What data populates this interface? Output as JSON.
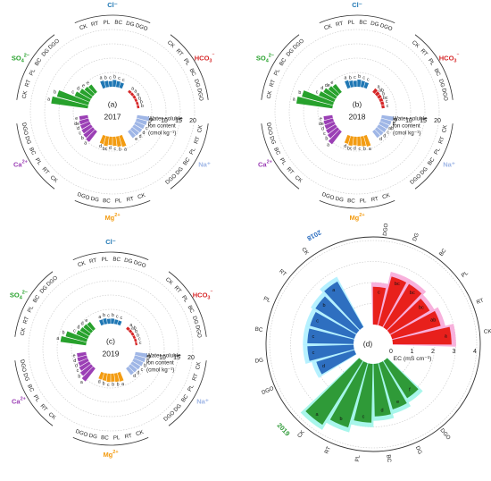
{
  "figure": {
    "panel_letters": [
      "(a)",
      "(b)",
      "(c)",
      "(d)"
    ],
    "years": [
      "2017",
      "2018",
      "2019"
    ],
    "ion_axis_title": [
      "Water-soluble",
      "ion content",
      "(cmol kg⁻¹)"
    ],
    "ec_axis_title": "EC (mS cm⁻¹)"
  },
  "colors": {
    "Cl": "#1f77b4",
    "HCO3": "#d62728",
    "Na": "#9fb6e6",
    "Mg": "#f39c12",
    "Ca": "#9b3fb5",
    "SO4": "#27a12c",
    "ec_2017": "#e8201c",
    "ec_2018": "#2e6fc0",
    "ec_2019": "#2f9a38",
    "halo_2017": "#f7a8d8",
    "halo_2018": "#aef0ff",
    "halo_2019": "#9ff5e9"
  },
  "chart_data": [
    {
      "type": "bar",
      "subtype": "polar",
      "panel": "(a)",
      "year": "2017",
      "radial_axis": {
        "label": "Water-soluble ion content (cmol kg⁻¹)",
        "ticks": [
          5,
          10,
          15,
          20
        ],
        "range": [
          0,
          20
        ]
      },
      "treatments": [
        "CK",
        "RT",
        "PL",
        "BC",
        "DG",
        "DGO"
      ],
      "groups": [
        {
          "ion": "Cl⁻",
          "values": [
            2.6,
            2.2,
            2.0,
            2.4,
            2.1,
            1.9
          ],
          "letters": [
            "a",
            "b",
            "c",
            "b",
            "c",
            "c"
          ]
        },
        {
          "ion": "HCO₃⁻",
          "values": [
            0.9,
            0.9,
            0.9,
            0.8,
            0.8,
            0.8
          ],
          "letters": [
            "a",
            "a",
            "a",
            "b",
            "b",
            "b"
          ]
        },
        {
          "ion": "Na⁺",
          "values": [
            4.3,
            3.8,
            3.5,
            3.3,
            3.1,
            2.9
          ],
          "letters": [
            "a",
            "b",
            "c",
            "d",
            "d",
            "e"
          ]
        },
        {
          "ion": "Mg²⁺",
          "values": [
            4.0,
            3.6,
            3.2,
            2.9,
            3.4,
            3.0
          ],
          "letters": [
            "a",
            "b",
            "c",
            "d",
            "bc",
            "d"
          ]
        },
        {
          "ion": "Ca²⁺",
          "values": [
            4.6,
            4.2,
            3.8,
            3.5,
            3.3,
            3.0
          ],
          "letters": [
            "a",
            "b",
            "c",
            "d",
            "de",
            "e"
          ]
        },
        {
          "ion": "SO₄²⁻",
          "values": [
            12.9,
            11.4,
            5.6,
            4.6,
            3.7,
            3.3
          ],
          "letters": [
            "a",
            "b",
            "c",
            "d",
            "e",
            "e"
          ]
        }
      ]
    },
    {
      "type": "bar",
      "subtype": "polar",
      "panel": "(b)",
      "year": "2018",
      "radial_axis": {
        "label": "Water-soluble ion content (cmol kg⁻¹)",
        "ticks": [
          5,
          10,
          15,
          20
        ],
        "range": [
          0,
          20
        ]
      },
      "treatments": [
        "CK",
        "RT",
        "PL",
        "BC",
        "DG",
        "DGO"
      ],
      "groups": [
        {
          "ion": "Cl⁻",
          "values": [
            2.7,
            2.3,
            2.1,
            2.5,
            2.2,
            2.0
          ],
          "letters": [
            "a",
            "b",
            "c",
            "b",
            "c",
            "c"
          ]
        },
        {
          "ion": "HCO₃⁻",
          "values": [
            1.6,
            1.4,
            1.3,
            1.2,
            1.1,
            1.0
          ],
          "letters": [
            "a",
            "ab",
            "b",
            "bc",
            "c",
            "c"
          ]
        },
        {
          "ion": "Na⁺",
          "values": [
            4.1,
            3.7,
            3.4,
            3.2,
            3.0,
            2.8
          ],
          "letters": [
            "a",
            "b",
            "ab",
            "c",
            "d",
            "d"
          ]
        },
        {
          "ion": "Mg²⁺",
          "values": [
            3.9,
            3.5,
            3.2,
            3.0,
            3.3,
            2.9
          ],
          "letters": [
            "a",
            "b",
            "c",
            "d",
            "bc",
            "d"
          ]
        },
        {
          "ion": "Ca²⁺",
          "values": [
            5.6,
            4.4,
            3.9,
            3.6,
            3.4,
            3.1
          ],
          "letters": [
            "a",
            "b",
            "c",
            "d",
            "de",
            "e"
          ]
        },
        {
          "ion": "SO₄²⁻",
          "values": [
            12.7,
            11.3,
            5.8,
            4.9,
            4.0,
            3.5
          ],
          "letters": [
            "a",
            "b",
            "c",
            "d",
            "de",
            "e"
          ]
        }
      ]
    },
    {
      "type": "bar",
      "subtype": "polar",
      "panel": "(c)",
      "year": "2019",
      "radial_axis": {
        "label": "Water-soluble ion content (cmol kg⁻¹)",
        "ticks": [
          5,
          10,
          15,
          20
        ],
        "range": [
          0,
          20
        ]
      },
      "treatments": [
        "CK",
        "RT",
        "PL",
        "BC",
        "DG",
        "DGO"
      ],
      "groups": [
        {
          "ion": "Cl⁻",
          "values": [
            1.9,
            2.0,
            1.7,
            1.8,
            1.6,
            1.5
          ],
          "letters": [
            "a",
            "b",
            "c",
            "b",
            "c",
            "c"
          ]
        },
        {
          "ion": "HCO₃⁻",
          "values": [
            1.0,
            0.9,
            0.9,
            0.8,
            0.8,
            0.7
          ],
          "letters": [
            "a",
            "ab",
            "b",
            "b",
            "c",
            "c"
          ]
        },
        {
          "ion": "Na⁺",
          "values": [
            4.2,
            3.9,
            3.6,
            3.3,
            3.0,
            2.9
          ],
          "letters": [
            "a",
            "b",
            "b",
            "c",
            "d",
            "d"
          ]
        },
        {
          "ion": "Mg²⁺",
          "values": [
            3.2,
            3.0,
            2.8,
            2.9,
            2.6,
            2.5
          ],
          "letters": [
            "a",
            "b",
            "b",
            "c",
            "b",
            "d"
          ]
        },
        {
          "ion": "Ca²⁺",
          "values": [
            5.7,
            4.8,
            4.1,
            3.6,
            3.4,
            3.2
          ],
          "letters": [
            "a",
            "b",
            "c",
            "d",
            "d",
            "e"
          ]
        },
        {
          "ion": "SO₄²⁻",
          "values": [
            9.0,
            7.6,
            4.3,
            3.7,
            3.4,
            3.1
          ],
          "letters": [
            "a",
            "b",
            "c",
            "d",
            "d",
            "e"
          ]
        }
      ]
    },
    {
      "type": "bar",
      "subtype": "polar",
      "panel": "(d)",
      "radial_axis": {
        "label": "EC (mS cm⁻¹)",
        "ticks": [
          0,
          1,
          2,
          3,
          4
        ],
        "range": [
          0,
          4
        ]
      },
      "treatments": [
        "CK",
        "RT",
        "PL",
        "BC",
        "DG",
        "DGO"
      ],
      "series": [
        {
          "name": "2017",
          "values": [
            2.8,
            2.4,
            2.2,
            2.4,
            2.4,
            1.8
          ],
          "letters": [
            "a",
            "ab",
            "bc",
            "bc",
            "bc",
            "c"
          ]
        },
        {
          "name": "2018",
          "values": [
            2.5,
            2.3,
            2.2,
            2.2,
            2.2,
            1.9
          ],
          "letters": [
            "a",
            "b",
            "c",
            "c",
            "c",
            "d"
          ]
        },
        {
          "name": "2019",
          "values": [
            3.6,
            3.2,
            2.8,
            2.5,
            2.3,
            2.1
          ],
          "letters": [
            "a",
            "b",
            "c",
            "d",
            "e",
            "f"
          ]
        }
      ]
    }
  ]
}
